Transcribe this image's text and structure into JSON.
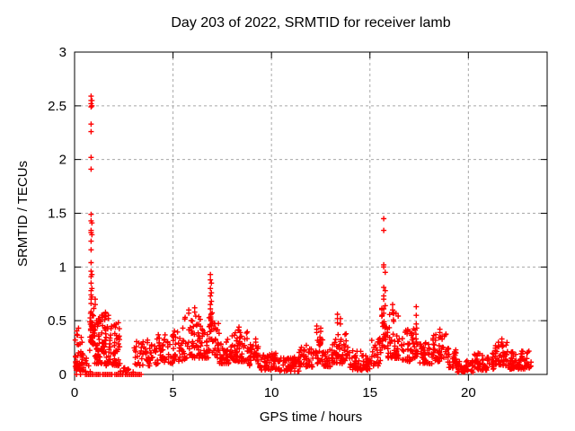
{
  "window": {
    "background": "#ffffff"
  },
  "chart_data": {
    "type": "scatter",
    "title": "Day 203 of 2022, SRMTID for receiver lamb",
    "xlabel": "GPS time / hours",
    "ylabel": "SRMTID / TECUs",
    "xlim": [
      0,
      24
    ],
    "ylim": [
      0,
      3
    ],
    "xticks": [
      0,
      5,
      10,
      15,
      20
    ],
    "yticks": [
      0,
      0.5,
      1,
      1.5,
      2,
      2.5,
      3
    ],
    "grid": true,
    "legend": "none",
    "marker": "plus",
    "colors": {
      "points": "#ff0000",
      "grid": "#a8a8a8",
      "axis": "#000000",
      "background": "#ffffff"
    },
    "seed": 2022203,
    "spike_columns": [
      {
        "x": 0.84,
        "ys": [
          2.59,
          2.55,
          2.52,
          2.49,
          2.33,
          2.26,
          2.02,
          1.91,
          1.49,
          1.43,
          1.34,
          1.32,
          1.24,
          1.16,
          1.04,
          0.96,
          0.91,
          0.85,
          0.78,
          0.74,
          0.7,
          0.66
        ]
      },
      {
        "x": 0.88,
        "ys": [
          2.55,
          2.5,
          1.41,
          1.3,
          0.93,
          0.8,
          0.72
        ]
      },
      {
        "x": 1.05,
        "ys": [
          0.7,
          0.65
        ]
      },
      {
        "x": 1.72,
        "ys": [
          0.55,
          0.52
        ]
      },
      {
        "x": 5.8,
        "ys": [
          0.6,
          0.57
        ]
      },
      {
        "x": 6.1,
        "ys": [
          0.62,
          0.58
        ]
      },
      {
        "x": 6.9,
        "ys": [
          0.93,
          0.88,
          0.8,
          0.73,
          0.65,
          0.61
        ]
      },
      {
        "x": 6.95,
        "ys": [
          0.85,
          0.76,
          0.68
        ]
      },
      {
        "x": 8.35,
        "ys": [
          0.44,
          0.41
        ]
      },
      {
        "x": 9.2,
        "ys": [
          0.33,
          0.3
        ]
      },
      {
        "x": 12.3,
        "ys": [
          0.45,
          0.42,
          0.39
        ]
      },
      {
        "x": 12.5,
        "ys": [
          0.43,
          0.4
        ]
      },
      {
        "x": 13.35,
        "ys": [
          0.56,
          0.52,
          0.48
        ]
      },
      {
        "x": 13.5,
        "ys": [
          0.52,
          0.47
        ]
      },
      {
        "x": 15.7,
        "ys": [
          1.45,
          1.34,
          1.02,
          1.0,
          0.81,
          0.73,
          0.7,
          0.61,
          0.57
        ]
      },
      {
        "x": 15.78,
        "ys": [
          0.95,
          0.78,
          0.64
        ]
      },
      {
        "x": 16.15,
        "ys": [
          0.65,
          0.6
        ]
      },
      {
        "x": 17.35,
        "ys": [
          0.63,
          0.55,
          0.47
        ]
      },
      {
        "x": 18.55,
        "ys": [
          0.42,
          0.39
        ]
      },
      {
        "x": 21.7,
        "ys": [
          0.33,
          0.3
        ]
      }
    ],
    "clusters": [
      [
        0.03,
        0.4,
        0.04,
        0.36,
        40,
        1.6
      ],
      [
        0.05,
        0.3,
        0.36,
        0.44,
        4,
        1.0
      ],
      [
        0.4,
        0.8,
        0.02,
        0.25,
        12,
        1.5
      ],
      [
        0.78,
        0.98,
        0.28,
        0.62,
        35,
        1.4
      ],
      [
        1.0,
        1.6,
        0.1,
        0.58,
        80,
        1.7
      ],
      [
        1.6,
        2.3,
        0.08,
        0.5,
        60,
        1.7
      ],
      [
        2.3,
        3.0,
        0.02,
        0.12,
        10,
        1.3
      ],
      [
        3.0,
        4.2,
        0.08,
        0.34,
        55,
        1.5
      ],
      [
        4.2,
        5.0,
        0.1,
        0.37,
        40,
        1.5
      ],
      [
        5.0,
        5.6,
        0.12,
        0.46,
        35,
        1.5
      ],
      [
        5.6,
        6.4,
        0.15,
        0.55,
        55,
        1.6
      ],
      [
        6.4,
        6.85,
        0.15,
        0.45,
        30,
        1.5
      ],
      [
        6.82,
        7.02,
        0.3,
        0.58,
        18,
        1.2
      ],
      [
        7.0,
        7.35,
        0.15,
        0.48,
        25,
        1.5
      ],
      [
        7.35,
        8.0,
        0.1,
        0.33,
        40,
        1.5
      ],
      [
        8.0,
        8.8,
        0.12,
        0.42,
        55,
        1.6
      ],
      [
        8.8,
        9.4,
        0.08,
        0.28,
        35,
        1.5
      ],
      [
        9.4,
        10.4,
        0.04,
        0.2,
        60,
        1.4
      ],
      [
        10.4,
        11.4,
        0.03,
        0.18,
        55,
        1.4
      ],
      [
        11.4,
        12.1,
        0.06,
        0.28,
        40,
        1.5
      ],
      [
        12.1,
        12.6,
        0.1,
        0.38,
        30,
        1.5
      ],
      [
        12.6,
        13.1,
        0.07,
        0.24,
        30,
        1.4
      ],
      [
        13.1,
        13.6,
        0.1,
        0.42,
        35,
        1.5
      ],
      [
        13.6,
        13.95,
        0.12,
        0.4,
        20,
        1.4
      ],
      [
        13.95,
        15.0,
        0.04,
        0.22,
        60,
        1.5
      ],
      [
        15.0,
        15.55,
        0.08,
        0.35,
        30,
        1.4
      ],
      [
        15.6,
        15.85,
        0.25,
        0.62,
        25,
        1.3
      ],
      [
        15.85,
        16.5,
        0.15,
        0.58,
        50,
        1.6
      ],
      [
        16.5,
        17.2,
        0.12,
        0.42,
        40,
        1.5
      ],
      [
        17.2,
        17.5,
        0.15,
        0.45,
        20,
        1.4
      ],
      [
        17.5,
        18.2,
        0.1,
        0.3,
        40,
        1.5
      ],
      [
        18.2,
        18.9,
        0.12,
        0.4,
        45,
        1.6
      ],
      [
        18.9,
        19.4,
        0.06,
        0.25,
        30,
        1.5
      ],
      [
        19.4,
        20.3,
        0.02,
        0.13,
        45,
        1.3
      ],
      [
        20.3,
        21.3,
        0.04,
        0.2,
        55,
        1.4
      ],
      [
        21.3,
        22.0,
        0.08,
        0.3,
        45,
        1.5
      ],
      [
        22.0,
        23.2,
        0.05,
        0.22,
        80,
        1.5
      ]
    ],
    "zero_runs": [
      [
        0.1,
        0.16
      ],
      [
        0.3,
        0.36
      ],
      [
        0.55,
        1.0
      ],
      [
        1.05,
        1.35
      ],
      [
        1.42,
        1.95
      ],
      [
        2.05,
        2.52
      ],
      [
        2.58,
        3.4
      ]
    ],
    "zero_step": 0.08
  }
}
